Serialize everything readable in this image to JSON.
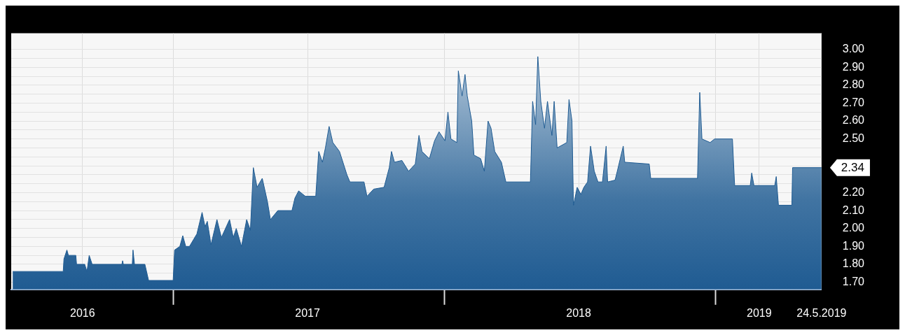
{
  "chart_data": {
    "type": "area",
    "xlim": [
      "2016-05-28",
      "2019-05-24"
    ],
    "ylim": [
      1.66,
      3.09
    ],
    "xticks": [
      {
        "value": "2016-09-01",
        "label": "2016"
      },
      {
        "value": "2017-01-01",
        "label": null
      },
      {
        "value": "2017-07-01",
        "label": "2017"
      },
      {
        "value": "2018-01-01",
        "label": null
      },
      {
        "value": "2018-07-01",
        "label": "2018"
      },
      {
        "value": "2019-01-01",
        "label": null
      },
      {
        "value": "2019-03-01",
        "label": "2019"
      },
      {
        "value": "2019-05-24",
        "label": "24.5.2019"
      }
    ],
    "yticks": [
      {
        "value": 1.7,
        "label": "1.70"
      },
      {
        "value": 1.75,
        "label": null
      },
      {
        "value": 1.8,
        "label": "1.80"
      },
      {
        "value": 1.85,
        "label": null
      },
      {
        "value": 1.9,
        "label": "1.90"
      },
      {
        "value": 1.95,
        "label": null
      },
      {
        "value": 2.0,
        "label": "2.00"
      },
      {
        "value": 2.05,
        "label": null
      },
      {
        "value": 2.1,
        "label": "2.10"
      },
      {
        "value": 2.15,
        "label": null
      },
      {
        "value": 2.2,
        "label": "2.20"
      },
      {
        "value": 2.25,
        "label": null
      },
      {
        "value": 2.3,
        "label": null
      },
      {
        "value": 2.35,
        "label": null
      },
      {
        "value": 2.4,
        "label": null
      },
      {
        "value": 2.45,
        "label": null
      },
      {
        "value": 2.5,
        "label": "2.50"
      },
      {
        "value": 2.55,
        "label": null
      },
      {
        "value": 2.6,
        "label": "2.60"
      },
      {
        "value": 2.65,
        "label": null
      },
      {
        "value": 2.7,
        "label": "2.70"
      },
      {
        "value": 2.75,
        "label": null
      },
      {
        "value": 2.8,
        "label": "2.80"
      },
      {
        "value": 2.85,
        "label": null
      },
      {
        "value": 2.9,
        "label": "2.90"
      },
      {
        "value": 2.95,
        "label": null
      },
      {
        "value": 3.0,
        "label": "3.00"
      }
    ],
    "grid": true,
    "annotations": [
      {
        "text": "2.34",
        "x": "2019-05-24",
        "y": 2.34
      }
    ],
    "series": [
      {
        "color": "#1f5b92",
        "x": [
          "2016-05-30",
          "2016-08-06",
          "2016-08-07",
          "2016-08-11",
          "2016-08-13",
          "2016-08-23",
          "2016-08-24",
          "2016-09-04",
          "2016-09-07",
          "2016-09-10",
          "2016-09-14",
          "2016-10-24",
          "2016-10-25",
          "2016-10-26",
          "2016-11-07",
          "2016-11-08",
          "2016-11-10",
          "2016-11-24",
          "2016-11-29",
          "2017-01-01",
          "2017-01-03",
          "2017-01-10",
          "2017-01-14",
          "2017-01-18",
          "2017-01-23",
          "2017-02-02",
          "2017-02-09",
          "2017-02-13",
          "2017-02-16",
          "2017-02-21",
          "2017-03-01",
          "2017-03-07",
          "2017-03-18",
          "2017-03-23",
          "2017-03-27",
          "2017-04-03",
          "2017-04-10",
          "2017-04-15",
          "2017-04-19",
          "2017-04-24",
          "2017-05-01",
          "2017-05-08",
          "2017-05-12",
          "2017-05-22",
          "2017-06-10",
          "2017-06-14",
          "2017-06-19",
          "2017-06-28",
          "2017-07-12",
          "2017-07-16",
          "2017-07-21",
          "2017-07-25",
          "2017-07-30",
          "2017-08-04",
          "2017-08-13",
          "2017-08-23",
          "2017-08-27",
          "2017-09-15",
          "2017-09-19",
          "2017-09-28",
          "2017-10-12",
          "2017-10-19",
          "2017-10-22",
          "2017-10-26",
          "2017-11-05",
          "2017-11-14",
          "2017-11-23",
          "2017-11-28",
          "2017-12-02",
          "2017-12-12",
          "2017-12-19",
          "2017-12-25",
          "2018-01-02",
          "2018-01-06",
          "2018-01-10",
          "2018-01-18",
          "2018-01-20",
          "2018-01-25",
          "2018-01-29",
          "2018-02-01",
          "2018-02-07",
          "2018-02-10",
          "2018-02-19",
          "2018-02-24",
          "2018-03-01",
          "2018-03-05",
          "2018-03-10",
          "2018-03-19",
          "2018-03-25",
          "2018-04-27",
          "2018-04-30",
          "2018-05-04",
          "2018-05-07",
          "2018-05-11",
          "2018-05-16",
          "2018-05-20",
          "2018-05-26",
          "2018-05-29",
          "2018-06-02",
          "2018-06-15",
          "2018-06-18",
          "2018-06-22",
          "2018-06-24",
          "2018-06-29",
          "2018-07-04",
          "2018-07-08",
          "2018-07-13",
          "2018-07-17",
          "2018-07-22",
          "2018-07-27",
          "2018-08-02",
          "2018-08-07",
          "2018-08-09",
          "2018-08-19",
          "2018-08-22",
          "2018-08-26",
          "2018-08-30",
          "2018-09-01",
          "2018-10-04",
          "2018-10-06",
          "2018-12-08",
          "2018-12-11",
          "2018-12-14",
          "2018-12-25",
          "2018-12-31",
          "2019-01-24",
          "2019-01-27",
          "2019-02-17",
          "2019-02-19",
          "2019-02-22",
          "2019-03-22",
          "2019-03-24",
          "2019-03-27",
          "2019-04-14",
          "2019-04-15",
          "2019-05-24"
        ],
        "values": [
          1.76,
          1.76,
          1.83,
          1.88,
          1.85,
          1.85,
          1.8,
          1.8,
          1.76,
          1.85,
          1.8,
          1.8,
          1.82,
          1.8,
          1.8,
          1.88,
          1.8,
          1.8,
          1.71,
          1.71,
          1.88,
          1.9,
          1.96,
          1.9,
          1.9,
          1.97,
          2.09,
          2.01,
          2.04,
          1.91,
          2.05,
          1.95,
          2.05,
          1.95,
          2.0,
          1.9,
          2.05,
          1.99,
          2.34,
          2.23,
          2.28,
          2.15,
          2.05,
          2.1,
          2.1,
          2.17,
          2.21,
          2.18,
          2.18,
          2.43,
          2.37,
          2.45,
          2.57,
          2.48,
          2.43,
          2.3,
          2.26,
          2.26,
          2.18,
          2.22,
          2.23,
          2.34,
          2.43,
          2.37,
          2.38,
          2.32,
          2.36,
          2.52,
          2.43,
          2.39,
          2.49,
          2.54,
          2.49,
          2.65,
          2.5,
          2.48,
          2.88,
          2.74,
          2.86,
          2.74,
          2.6,
          2.41,
          2.39,
          2.32,
          2.6,
          2.56,
          2.43,
          2.37,
          2.26,
          2.26,
          2.71,
          2.58,
          2.96,
          2.71,
          2.56,
          2.71,
          2.52,
          2.71,
          2.45,
          2.48,
          2.72,
          2.6,
          2.13,
          2.23,
          2.19,
          2.23,
          2.26,
          2.46,
          2.32,
          2.26,
          2.26,
          2.46,
          2.26,
          2.27,
          2.32,
          2.39,
          2.46,
          2.37,
          2.36,
          2.28,
          2.28,
          2.76,
          2.5,
          2.48,
          2.5,
          2.5,
          2.24,
          2.24,
          2.31,
          2.24,
          2.24,
          2.29,
          2.13,
          2.13,
          2.34,
          2.34
        ]
      }
    ]
  }
}
